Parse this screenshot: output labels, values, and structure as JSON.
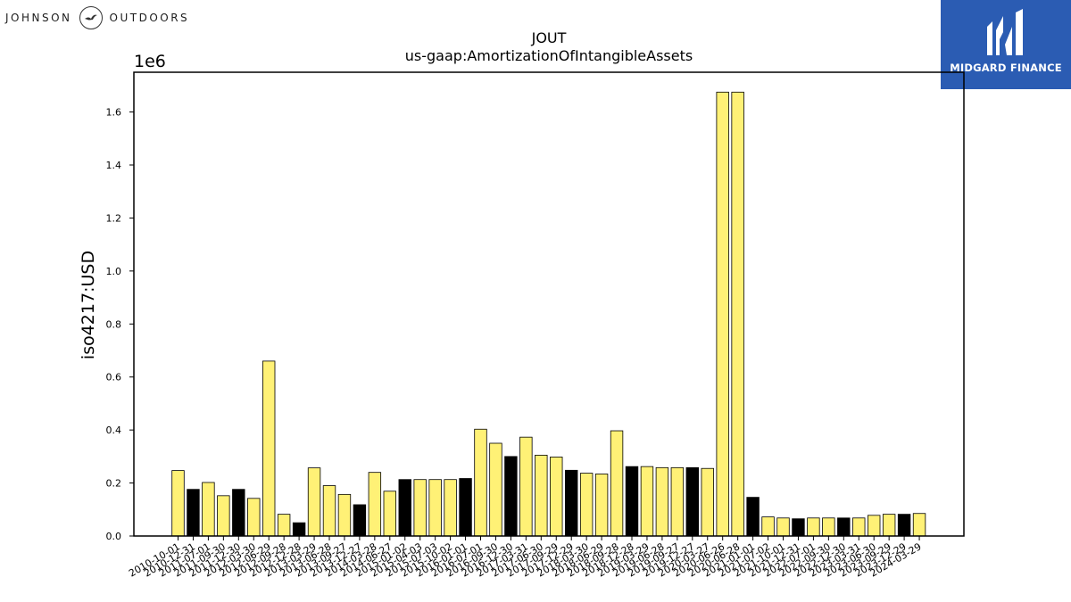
{
  "logos": {
    "left": {
      "word1": "JOHNSON",
      "word2": "OUTDOORS"
    },
    "right": {
      "name": "MIDGARD FINANCE"
    }
  },
  "colors": {
    "bar_default": "#fff176",
    "bar_highlight": "#000000",
    "right_logo_bg": "#2b5cb3"
  },
  "chart_data": {
    "type": "bar",
    "title": "JOUT",
    "subtitle": "us-gaap:AmortizationOfIntangibleAssets",
    "ylabel": "iso4217:USD",
    "xlabel": "",
    "y_multiplier_label": "1e6",
    "ylim": [
      0,
      1.75
    ],
    "yticks": [
      "0.0",
      "0.2",
      "0.4",
      "0.6",
      "0.8",
      "1.0",
      "1.2",
      "1.4",
      "1.6"
    ],
    "grid": false,
    "categories": [
      "2010-10-01",
      "2010-12-31",
      "2011-07-01",
      "2011-09-30",
      "2011-12-30",
      "2012-03-30",
      "2012-06-29",
      "2012-09-28",
      "2012-12-28",
      "2013-03-29",
      "2013-06-28",
      "2013-09-27",
      "2013-12-27",
      "2014-03-28",
      "2014-06-27",
      "2015-01-02",
      "2015-04-03",
      "2015-07-03",
      "2015-10-02",
      "2016-01-01",
      "2016-07-01",
      "2016-09-30",
      "2016-12-30",
      "2017-03-31",
      "2017-06-30",
      "2017-09-29",
      "2017-12-29",
      "2018-03-30",
      "2018-06-29",
      "2018-09-28",
      "2018-12-28",
      "2019-03-29",
      "2019-06-28",
      "2019-09-27",
      "2019-12-27",
      "2020-03-27",
      "2020-06-26",
      "2020-06-28",
      "2021-01-01",
      "2021-07-02",
      "2021-10-01",
      "2021-12-31",
      "2022-07-01",
      "2022-09-30",
      "2022-12-30",
      "2023-03-31",
      "2023-06-30",
      "2023-09-29",
      "2023-12-29",
      "2024-03-29"
    ],
    "values": [
      0.247,
      0.176,
      0.202,
      0.152,
      0.176,
      0.142,
      0.66,
      0.082,
      0.05,
      0.257,
      0.19,
      0.157,
      0.118,
      0.24,
      0.169,
      0.213,
      0.213,
      0.213,
      0.213,
      0.217,
      0.403,
      0.35,
      0.3,
      0.373,
      0.305,
      0.298,
      0.248,
      0.237,
      0.234,
      0.397,
      0.262,
      0.262,
      0.258,
      0.258,
      0.258,
      0.255,
      1.675,
      1.675,
      0.146,
      0.072,
      0.068,
      0.065,
      0.068,
      0.068,
      0.068,
      0.068,
      0.078,
      0.082,
      0.082,
      0.085
    ],
    "highlight": [
      false,
      true,
      false,
      false,
      true,
      false,
      false,
      false,
      true,
      false,
      false,
      false,
      true,
      false,
      false,
      true,
      false,
      false,
      false,
      true,
      false,
      false,
      true,
      false,
      false,
      false,
      true,
      false,
      false,
      false,
      true,
      false,
      false,
      false,
      true,
      false,
      false,
      false,
      true,
      false,
      false,
      true,
      false,
      false,
      true,
      false,
      false,
      false,
      true,
      false
    ]
  }
}
